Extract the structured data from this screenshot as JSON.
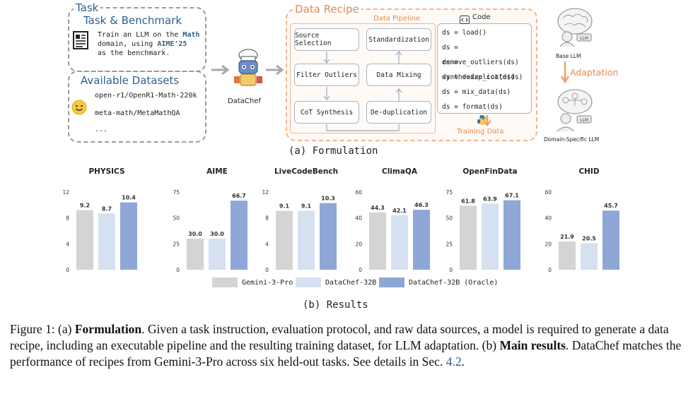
{
  "formulation": {
    "task_title": "Task",
    "task_benchmark_title": "Task & Benchmark",
    "task_desc_lines": [
      "Train an LLM on the",
      "domain, using",
      "as the benchmark."
    ],
    "task_math": "Math",
    "task_aime": "AIME'25",
    "datasets_title": "Available Datasets",
    "datasets": [
      "open-r1/OpenR1-Math-220k",
      "meta-math/MetaMathQA",
      "..."
    ],
    "datachef_label": "DataChef",
    "recipe_title": "Data Recipe",
    "pipeline_title": "Data Pipeline",
    "pipeline_left": [
      "Source Selection",
      "Filter Outliers",
      "CoT Synthesis"
    ],
    "pipeline_right": [
      "Standardization",
      "Data Mixing",
      "De-duplication"
    ],
    "code_title": "Code",
    "code_lines": [
      "ds = load()",
      "ds = remove_outliers(ds)",
      "ds = synthesize_cot(ds)",
      "ds = deduplicate(ds)",
      "ds = mix_data(ds)",
      "ds = format(ds)"
    ],
    "training_data": "Training Data",
    "base_llm": "Base LLM",
    "adaptation": "Adaptation",
    "domain_llm": "Domain-Specific LLM",
    "subcaption_a": "(a) Formulation"
  },
  "chart_data": [
    {
      "type": "bar",
      "title": "PHYSICS",
      "categories": [
        "Gemini-3-Pro",
        "DataChef-32B",
        "DataChef-32B (Oracle)"
      ],
      "values": [
        9.2,
        8.7,
        10.4
      ],
      "labels": [
        "9.2",
        "8.7",
        "10.4"
      ],
      "ylim": [
        0,
        12
      ],
      "ticks": [
        "0",
        "4",
        "8",
        "12"
      ]
    },
    {
      "type": "bar",
      "title": "AIME",
      "categories": [
        "Gemini-3-Pro",
        "DataChef-32B",
        "DataChef-32B (Oracle)"
      ],
      "values": [
        30.0,
        30.0,
        66.7
      ],
      "labels": [
        "30.0",
        "30.0",
        "66.7"
      ],
      "ylim": [
        0,
        75
      ],
      "ticks": [
        "0",
        "25",
        "50",
        "75"
      ]
    },
    {
      "type": "bar",
      "title": "LiveCodeBench",
      "categories": [
        "Gemini-3-Pro",
        "DataChef-32B",
        "DataChef-32B (Oracle)"
      ],
      "values": [
        9.1,
        9.1,
        10.3
      ],
      "labels": [
        "9.1",
        "9.1",
        "10.3"
      ],
      "ylim": [
        0,
        12
      ],
      "ticks": [
        "0",
        "4",
        "8",
        "12"
      ]
    },
    {
      "type": "bar",
      "title": "ClimaQA",
      "categories": [
        "Gemini-3-Pro",
        "DataChef-32B",
        "DataChef-32B (Oracle)"
      ],
      "values": [
        44.3,
        42.1,
        46.3
      ],
      "labels": [
        "44.3",
        "42.1",
        "46.3"
      ],
      "ylim": [
        0,
        60
      ],
      "ticks": [
        "0",
        "20",
        "40",
        "60"
      ]
    },
    {
      "type": "bar",
      "title": "OpenFinData",
      "categories": [
        "Gemini-3-Pro",
        "DataChef-32B",
        "DataChef-32B (Oracle)"
      ],
      "values": [
        61.8,
        63.9,
        67.1
      ],
      "labels": [
        "61.8",
        "63.9",
        "67.1"
      ],
      "ylim": [
        0,
        75
      ],
      "ticks": [
        "0",
        "25",
        "50",
        "75"
      ]
    },
    {
      "type": "bar",
      "title": "CHID",
      "categories": [
        "Gemini-3-Pro",
        "DataChef-32B",
        "DataChef-32B (Oracle)"
      ],
      "values": [
        21.9,
        20.5,
        45.7
      ],
      "labels": [
        "21.9",
        "20.5",
        "45.7"
      ],
      "ylim": [
        0,
        60
      ],
      "ticks": [
        "0",
        "20",
        "40",
        "60"
      ]
    }
  ],
  "legend": [
    {
      "label": "Gemini-3-Pro",
      "color": "#d4d4d4"
    },
    {
      "label": "DataChef-32B",
      "color": "#d5e0f0"
    },
    {
      "label": "DataChef-32B (Oracle)",
      "color": "#8ea7d6"
    }
  ],
  "subcaption_b": "(b) Results",
  "caption": {
    "fig": "Figure 1: (a)",
    "formulation_bold": "Formulation",
    "part1": ". Given a task instruction, evaluation protocol, and raw data sources, a model is required to generate a data recipe, including an executable pipeline and the resulting training dataset, for LLM adaptation. (b)",
    "main_bold": "Main results",
    "part2": ". DataChef matches the performance of recipes from Gemini-3-Pro across six held-out tasks. See details in Sec.",
    "ref": "4.2",
    "end": "."
  },
  "colors": {
    "accent": "#2f5f8f",
    "recipe": "#f0a070",
    "gray_bar": "#d4d4d4",
    "light_bar": "#d5e0f0",
    "oracle_bar": "#8ea7d6"
  }
}
